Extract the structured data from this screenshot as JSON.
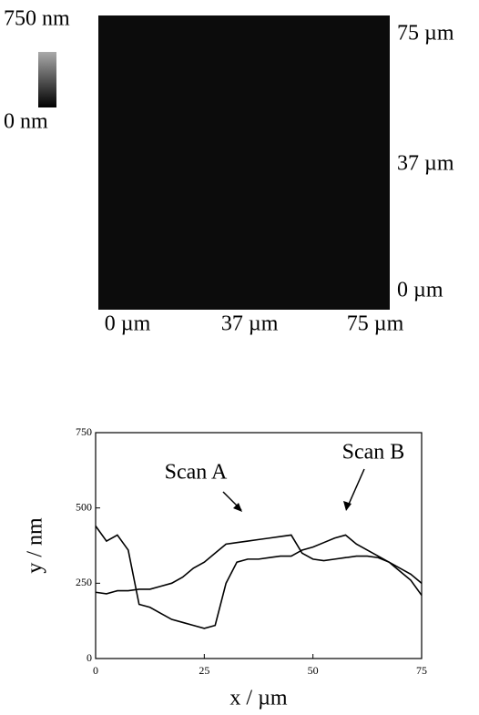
{
  "chart_data": [
    {
      "type": "heatmap",
      "clim": [
        0,
        750
      ],
      "colorbar_ticks": [
        {
          "value": 750,
          "label": "750 nm"
        },
        {
          "value": 0,
          "label": "0 nm"
        }
      ],
      "xlim": [
        0,
        75
      ],
      "xticks": [
        {
          "value": 0,
          "label": "0 µm"
        },
        {
          "value": 37,
          "label": "37 µm"
        },
        {
          "value": 75,
          "label": "75 µm"
        }
      ],
      "ylim": [
        0,
        75
      ],
      "yticks": [
        {
          "value": 75,
          "label": "75 µm"
        },
        {
          "value": 37,
          "label": "37 µm"
        },
        {
          "value": 0,
          "label": "0 µm"
        }
      ]
    },
    {
      "type": "line",
      "xlabel": "x / µm",
      "ylabel": "y / nm",
      "xlim": [
        0,
        75
      ],
      "xticks": [
        0,
        25,
        50,
        75
      ],
      "ylim": [
        0,
        750
      ],
      "yticks": [
        0,
        250,
        500,
        750
      ],
      "x": [
        0,
        2.5,
        5,
        7.5,
        10,
        12.5,
        15,
        17.5,
        20,
        22.5,
        25,
        27.5,
        30,
        32.5,
        35,
        37.5,
        40,
        42.5,
        45,
        47.5,
        50,
        52.5,
        55,
        57.5,
        60,
        62.5,
        65,
        67.5,
        70,
        72.5,
        75
      ],
      "series": [
        {
          "name": "Scan A",
          "color": "#000000",
          "values": [
            220,
            215,
            225,
            225,
            230,
            230,
            240,
            250,
            270,
            300,
            320,
            350,
            380,
            385,
            390,
            395,
            400,
            405,
            410,
            350,
            330,
            325,
            330,
            335,
            340,
            340,
            335,
            320,
            290,
            260,
            210
          ]
        },
        {
          "name": "Scan B",
          "color": "#000000",
          "values": [
            440,
            390,
            410,
            360,
            180,
            170,
            150,
            130,
            120,
            110,
            100,
            110,
            250,
            320,
            330,
            330,
            335,
            340,
            340,
            360,
            370,
            385,
            400,
            410,
            380,
            360,
            340,
            320,
            300,
            280,
            250
          ]
        }
      ]
    }
  ]
}
